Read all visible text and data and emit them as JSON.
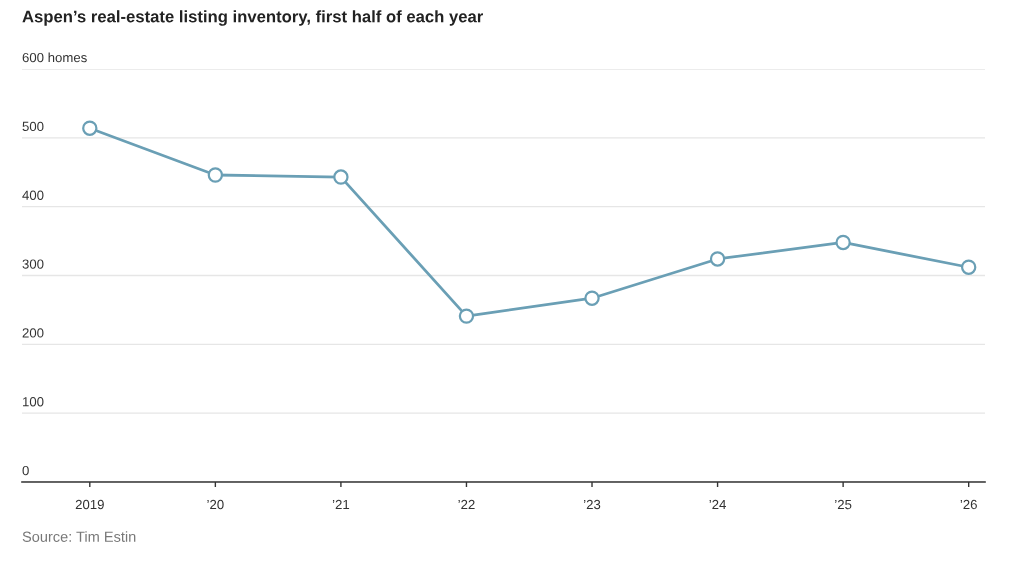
{
  "chart_data": {
    "type": "line",
    "title": "Aspen’s real-estate listing inventory, first half of each year",
    "annotations": [
      "Source: Tim Estin"
    ],
    "categories": [
      "2019",
      "’20",
      "’21",
      "’22",
      "’23",
      "’24",
      "’25",
      "’26"
    ],
    "values": [
      514,
      446,
      443,
      241,
      267,
      324,
      348,
      312
    ],
    "color": "#6a9fb5",
    "ylim": [
      0,
      600
    ],
    "yticks": [
      0,
      100,
      200,
      300,
      400,
      500,
      {
        "value": 600,
        "label": "600 homes"
      }
    ],
    "grid": "y",
    "marker": "circle",
    "line_style": "solid"
  }
}
